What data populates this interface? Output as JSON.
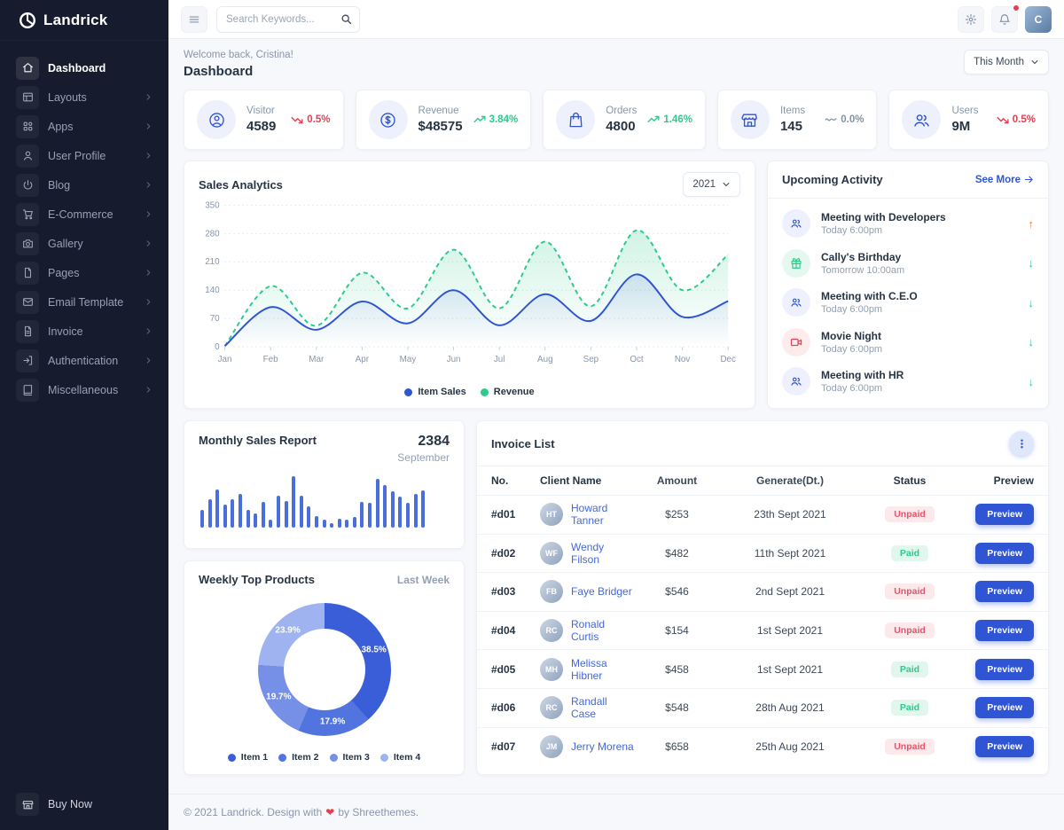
{
  "brand": {
    "name": "Landrick"
  },
  "sidebar": {
    "items": [
      {
        "label": "Dashboard",
        "icon": "home-icon",
        "active": true,
        "arrow": false
      },
      {
        "label": "Layouts",
        "icon": "layout-icon",
        "active": false,
        "arrow": true
      },
      {
        "label": "Apps",
        "icon": "grid-icon",
        "active": false,
        "arrow": true
      },
      {
        "label": "User Profile",
        "icon": "user-icon",
        "active": false,
        "arrow": true
      },
      {
        "label": "Blog",
        "icon": "blog-icon",
        "active": false,
        "arrow": true
      },
      {
        "label": "E-Commerce",
        "icon": "cart-icon",
        "active": false,
        "arrow": true
      },
      {
        "label": "Gallery",
        "icon": "camera-icon",
        "active": false,
        "arrow": true
      },
      {
        "label": "Pages",
        "icon": "page-icon",
        "active": false,
        "arrow": true
      },
      {
        "label": "Email Template",
        "icon": "mail-icon",
        "active": false,
        "arrow": true
      },
      {
        "label": "Invoice",
        "icon": "invoice-icon",
        "active": false,
        "arrow": true
      },
      {
        "label": "Authentication",
        "icon": "login-icon",
        "active": false,
        "arrow": true
      },
      {
        "label": "Miscellaneous",
        "icon": "book-icon",
        "active": false,
        "arrow": true
      }
    ],
    "buy_now": "Buy Now"
  },
  "topbar": {
    "search_placeholder": "Search Keywords..."
  },
  "page": {
    "welcome": "Welcome back, Cristina!",
    "title": "Dashboard",
    "period": "This Month",
    "avatar_initial": "C"
  },
  "stats": [
    {
      "label": "Visitor",
      "value": "4589",
      "trend": "0.5%",
      "direction": "down",
      "icon": "user-circle-icon"
    },
    {
      "label": "Revenue",
      "value": "$48575",
      "trend": "3.84%",
      "direction": "up",
      "icon": "dollar-circle-icon"
    },
    {
      "label": "Orders",
      "value": "4800",
      "trend": "1.46%",
      "direction": "up",
      "icon": "shopping-bag-icon"
    },
    {
      "label": "Items",
      "value": "145",
      "trend": "0.0%",
      "direction": "flat",
      "icon": "store-icon"
    },
    {
      "label": "Users",
      "value": "9M",
      "trend": "0.5%",
      "direction": "down",
      "icon": "users-icon"
    }
  ],
  "sales": {
    "title": "Sales Analytics",
    "year": "2021"
  },
  "activity": {
    "title": "Upcoming Activity",
    "see_more": "See More",
    "items": [
      {
        "title": "Meeting with Developers",
        "time": "Today 6:00pm",
        "icon": "team-icon",
        "tint": "blue",
        "arrow": "up",
        "arrow_color": "orange"
      },
      {
        "title": "Cally's Birthday",
        "time": "Tomorrow 10:00am",
        "icon": "gift-icon",
        "tint": "green",
        "arrow": "down",
        "arrow_color": "green"
      },
      {
        "title": "Meeting with C.E.O",
        "time": "Today 6:00pm",
        "icon": "team-icon",
        "tint": "blue",
        "arrow": "down",
        "arrow_color": "green"
      },
      {
        "title": "Movie Night",
        "time": "Today 6:00pm",
        "icon": "video-icon",
        "tint": "red",
        "arrow": "down",
        "arrow_color": "green"
      },
      {
        "title": "Meeting with HR",
        "time": "Today 6:00pm",
        "icon": "team-icon",
        "tint": "blue",
        "arrow": "down",
        "arrow_color": "green"
      }
    ]
  },
  "monthly": {
    "title": "Monthly Sales Report",
    "value": "2384",
    "month": "September"
  },
  "weekly": {
    "title": "Weekly Top Products",
    "period": "Last Week"
  },
  "invoices": {
    "title": "Invoice List",
    "columns": [
      "No.",
      "Client Name",
      "Amount",
      "Generate(Dt.)",
      "Status",
      "Preview"
    ],
    "preview_label": "Preview",
    "rows": [
      {
        "no": "#d01",
        "client": "Howard Tanner",
        "amount": "$253",
        "date": "23th Sept 2021",
        "status": "Unpaid"
      },
      {
        "no": "#d02",
        "client": "Wendy Filson",
        "amount": "$482",
        "date": "11th Sept 2021",
        "status": "Paid"
      },
      {
        "no": "#d03",
        "client": "Faye Bridger",
        "amount": "$546",
        "date": "2nd Sept 2021",
        "status": "Unpaid"
      },
      {
        "no": "#d04",
        "client": "Ronald Curtis",
        "amount": "$154",
        "date": "1st Sept 2021",
        "status": "Unpaid"
      },
      {
        "no": "#d05",
        "client": "Melissa Hibner",
        "amount": "$458",
        "date": "1st Sept 2021",
        "status": "Paid"
      },
      {
        "no": "#d06",
        "client": "Randall Case",
        "amount": "$548",
        "date": "28th Aug 2021",
        "status": "Paid"
      },
      {
        "no": "#d07",
        "client": "Jerry Morena",
        "amount": "$658",
        "date": "25th Aug 2021",
        "status": "Unpaid"
      }
    ]
  },
  "footer": {
    "text": "© 2021 Landrick. Design with",
    "heart": "❤",
    "suffix": "by Shreethemes."
  },
  "colors": {
    "primary": "#2f55d4",
    "green": "#2eca8b",
    "red": "#e43f52",
    "orange": "#f1743f",
    "sidebar_bg": "#161c2d",
    "bar_blue": "#4a6edb"
  },
  "chart_data": [
    {
      "type": "line",
      "title": "Sales Analytics",
      "x": [
        "Jan",
        "Feb",
        "Mar",
        "Apr",
        "May",
        "Jun",
        "Jul",
        "Aug",
        "Sep",
        "Oct",
        "Nov",
        "Dec"
      ],
      "series": [
        {
          "name": "Item Sales",
          "color": "#2f55d4",
          "style": "solid",
          "values": [
            2,
            98,
            42,
            112,
            58,
            140,
            53,
            130,
            64,
            179,
            74,
            113
          ]
        },
        {
          "name": "Revenue",
          "color": "#2eca8b",
          "style": "dashed",
          "values": [
            2,
            150,
            52,
            183,
            95,
            240,
            95,
            260,
            100,
            288,
            140,
            228
          ]
        }
      ],
      "ylim": [
        0,
        350
      ],
      "yticks": [
        0,
        70,
        140,
        210,
        280,
        350
      ],
      "grid": true,
      "legend_position": "bottom"
    },
    {
      "type": "bar",
      "title": "Monthly Sales Report",
      "total_label": "2384",
      "period": "September",
      "color": "#4a6edb",
      "values": [
        35,
        55,
        75,
        45,
        55,
        65,
        35,
        28,
        50,
        15,
        62,
        52,
        100,
        62,
        42,
        22,
        15,
        8,
        18,
        15,
        20,
        50,
        48,
        95,
        82,
        70,
        60,
        48,
        65,
        72
      ]
    },
    {
      "type": "pie",
      "title": "Weekly Top Products",
      "labels": [
        "Item 1",
        "Item 2",
        "Item 3",
        "Item 4"
      ],
      "values": [
        38.5,
        17.9,
        19.7,
        23.9
      ],
      "colors": [
        "#3a5ed8",
        "#5274de",
        "#7590e6",
        "#9eb3ef"
      ],
      "legend_position": "bottom"
    }
  ]
}
